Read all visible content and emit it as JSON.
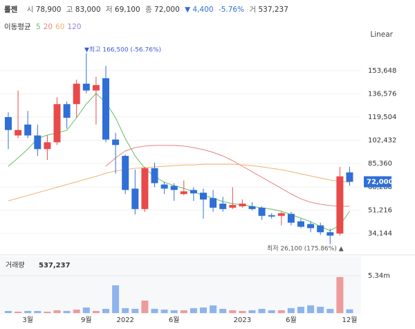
{
  "header": {
    "name": "롤젠",
    "open_label": "시",
    "open": "78,900",
    "high_label": "고",
    "high": "83,000",
    "low_label": "저",
    "low": "69,100",
    "close_label": "종",
    "close": "72,000",
    "change": "▼ 4,400",
    "change_pct": "-5.76%",
    "volume_label": "거",
    "volume": "537,237"
  },
  "chart_data": {
    "type": "candlestick",
    "scale": "Linear",
    "ma_title": "이동평균",
    "categories": [
      null,
      null,
      "3월",
      null,
      null,
      null,
      null,
      null,
      "9월",
      null,
      null,
      null,
      "2022",
      null,
      null,
      null,
      null,
      "6월",
      null,
      null,
      null,
      null,
      null,
      null,
      "2023",
      null,
      null,
      null,
      null,
      "6월",
      null,
      null,
      null,
      null,
      null,
      "12월"
    ],
    "open": [
      119500,
      106000,
      114000,
      106000,
      96000,
      101000,
      129000,
      129000,
      144000,
      139000,
      148000,
      103000,
      91000,
      67000,
      52000,
      82000,
      70000,
      69000,
      63000,
      66000,
      64000,
      60000,
      56000,
      53000,
      54000,
      54000,
      53000,
      47500,
      47000,
      48500,
      43000,
      41000,
      40000,
      35000,
      34000,
      78900
    ],
    "high": [
      123000,
      139000,
      124000,
      114000,
      106000,
      134000,
      131000,
      147000,
      166500,
      149000,
      157000,
      108000,
      92000,
      81000,
      83000,
      86000,
      72000,
      71000,
      73000,
      68000,
      67000,
      66000,
      61000,
      68000,
      59000,
      57000,
      54000,
      49000,
      50000,
      50000,
      45000,
      43000,
      42000,
      37500,
      83000,
      83000
    ],
    "low": [
      96000,
      104000,
      104000,
      91000,
      88000,
      99000,
      111000,
      119000,
      137000,
      114000,
      101000,
      78000,
      63000,
      48000,
      50000,
      68000,
      63000,
      58000,
      62000,
      58000,
      45000,
      50000,
      50000,
      52000,
      53000,
      51000,
      44000,
      45000,
      40000,
      40000,
      38000,
      35000,
      33000,
      26100,
      32500,
      69100
    ],
    "close": [
      110000,
      110000,
      106000,
      96000,
      101000,
      129000,
      119000,
      144000,
      139000,
      143000,
      103000,
      99000,
      66000,
      52000,
      82000,
      71000,
      67000,
      66000,
      65000,
      63500,
      59000,
      53000,
      52000,
      55000,
      56000,
      52000,
      47000,
      46500,
      49000,
      42000,
      39000,
      38000,
      35000,
      32500,
      76000,
      72000
    ],
    "volume": [
      300000,
      200000,
      300000,
      300000,
      200000,
      400000,
      300000,
      500000,
      800000,
      300000,
      600000,
      3960000,
      700000,
      600000,
      1780000,
      600000,
      500000,
      400000,
      400000,
      700000,
      800000,
      1090000,
      600000,
      400000,
      300000,
      400000,
      600000,
      400000,
      400000,
      700000,
      900000,
      1100000,
      900000,
      600000,
      5150000,
      537237
    ],
    "up_color": "#e84a4a",
    "down_color": "#2f6fd6",
    "up_volume_color": "#ee9b9b",
    "down_volume_color": "#8eb4ee",
    "series": [
      {
        "name": "5",
        "color": "#62be62",
        "values": [
          83400,
          89500,
          96000,
          103700,
          106300,
          107800,
          109800,
          119000,
          129100,
          136800,
          130200,
          119000,
          103700,
          91000,
          81900,
          75800,
          71700,
          69200,
          67200,
          64600,
          62100,
          60000,
          57500,
          56000,
          55000,
          54000,
          52900,
          51900,
          50400,
          47900,
          45300,
          42800,
          39200,
          36200,
          40200,
          50400
        ]
      },
      {
        "name": "20",
        "color": "#e8827f",
        "values": [
          null,
          null,
          null,
          null,
          null,
          null,
          null,
          null,
          null,
          null,
          83400,
          89500,
          94600,
          97100,
          98200,
          98700,
          98700,
          98700,
          98200,
          97100,
          95600,
          93600,
          91000,
          87500,
          83400,
          79400,
          75300,
          71300,
          67200,
          63100,
          59500,
          57000,
          55500,
          54500,
          54000,
          54000
        ]
      },
      {
        "name": "60",
        "color": "#f0b070",
        "values": [
          58000,
          60000,
          62000,
          64000,
          66000,
          68000,
          70000,
          72000,
          74000,
          76000,
          78300,
          79900,
          80900,
          81900,
          82400,
          82900,
          83400,
          83900,
          84400,
          84400,
          84900,
          84900,
          84900,
          84900,
          84400,
          83900,
          82900,
          81900,
          80900,
          79400,
          77800,
          76300,
          74800,
          73300,
          72300,
          71700
        ]
      },
      {
        "name": "120",
        "color": "#9a7fd6",
        "values": [
          null,
          null,
          null,
          null,
          null,
          null,
          null,
          null,
          null,
          null,
          null,
          null,
          null,
          null,
          null,
          null,
          null,
          null,
          null,
          null,
          null,
          null,
          null,
          null,
          null,
          null,
          null,
          null,
          null,
          null,
          null,
          null,
          null,
          null,
          null,
          null
        ]
      }
    ],
    "ylim": [
      19900,
      174900
    ],
    "yticks": [
      {
        "value": 34144,
        "label": "34,144"
      },
      {
        "value": 51216,
        "label": "51,216"
      },
      {
        "value": 68288,
        "label": "68,288"
      },
      {
        "value": 85360,
        "label": "85,360"
      },
      {
        "value": 102432,
        "label": "102,432"
      },
      {
        "value": 119504,
        "label": "119,504"
      },
      {
        "value": 136576,
        "label": "136,576"
      },
      {
        "value": 153648,
        "label": "153,648"
      }
    ],
    "grid": true,
    "last_price_label": "72,000",
    "annotations": [
      "▼최고 166,500 (-56.76%)",
      "최저 26,100 (175.86%) ▲"
    ],
    "volume_title": "거래량",
    "volume_last": "537,237",
    "volume_ylim": [
      0,
      7910000
    ],
    "volume_yticks": [
      {
        "value": 5340000,
        "label": "5.34m"
      }
    ]
  }
}
